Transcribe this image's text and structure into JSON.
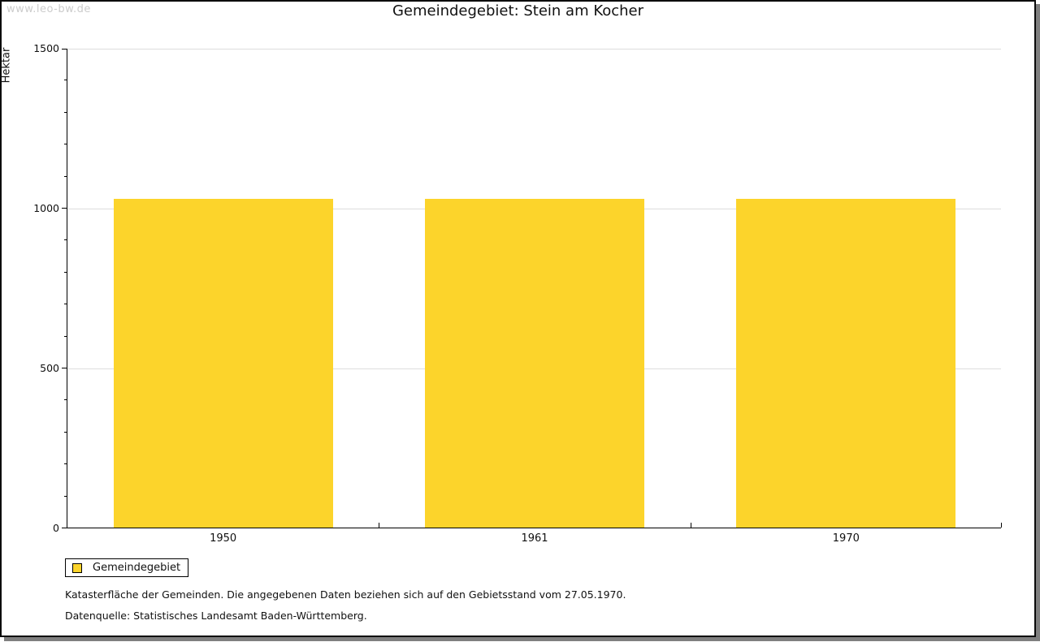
{
  "watermark": "www.leo-bw.de",
  "header": {
    "title": "Gemeindegebiet: Stein am Kocher"
  },
  "chart_data": {
    "type": "bar",
    "title": "Gemeindegebiet: Stein am Kocher",
    "categories": [
      "1950",
      "1961",
      "1970"
    ],
    "values": [
      1027,
      1027,
      1027
    ],
    "series": [
      {
        "name": "Gemeindegebiet",
        "values": [
          1027,
          1027,
          1027
        ],
        "color": "#FCD42B"
      }
    ],
    "xlabel": "",
    "ylabel": "Hektar",
    "ylim": [
      0,
      1500
    ],
    "ytick_major": [
      0,
      500,
      1000,
      1500
    ],
    "ytick_minor_step": 100,
    "grid": true,
    "legend_position": "bottom-left"
  },
  "legend": {
    "label": "Gemeindegebiet"
  },
  "footer": {
    "line1": "Katasterfläche der Gemeinden. Die angegebenen Daten beziehen sich auf den Gebietsstand vom 27.05.1970.",
    "line2": "Datenquelle: Statistisches Landesamt Baden-Württemberg."
  },
  "colors": {
    "bar": "#FCD42B",
    "grid": "#DDDDDD",
    "watermark": "#CCCCCC",
    "axis": "#000000",
    "frame_shadow": "#7F7F7F"
  }
}
